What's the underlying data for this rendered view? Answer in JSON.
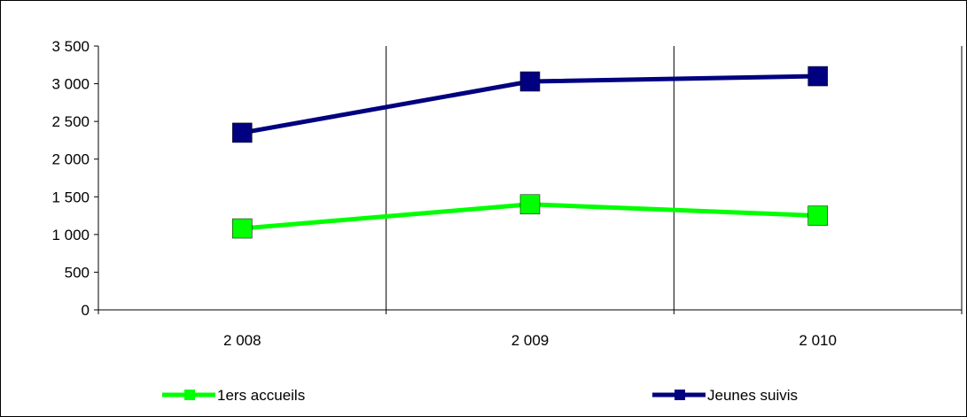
{
  "chart_data": {
    "type": "line",
    "categories": [
      "2 008",
      "2 009",
      "2 010"
    ],
    "yticks": [
      "0",
      "500",
      "1 000",
      "1 500",
      "2 000",
      "2 500",
      "3 000",
      "3 500"
    ],
    "ylim": [
      0,
      3500
    ],
    "grid": "vertical",
    "legend_placement": "bottom",
    "series": [
      {
        "name": "1ers accueils",
        "values": [
          1080,
          1400,
          1250
        ],
        "color": "#00ff00"
      },
      {
        "name": "Jeunes suivis",
        "values": [
          2350,
          3030,
          3100
        ],
        "color": "#000080"
      }
    ]
  }
}
